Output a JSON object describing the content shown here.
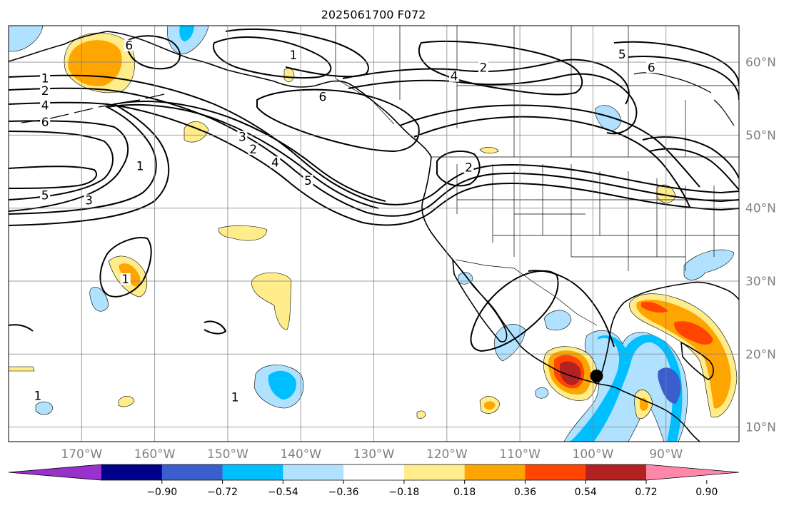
{
  "title": "2025061700 F072",
  "map": {
    "lon_range": [
      -180,
      -80
    ],
    "lat_range": [
      8,
      65
    ],
    "lon_ticks": [
      {
        "value": -170,
        "label": "170°W"
      },
      {
        "value": -160,
        "label": "160°W"
      },
      {
        "value": -150,
        "label": "150°W"
      },
      {
        "value": -140,
        "label": "140°W"
      },
      {
        "value": -130,
        "label": "130°W"
      },
      {
        "value": -120,
        "label": "120°W"
      },
      {
        "value": -110,
        "label": "110°W"
      },
      {
        "value": -100,
        "label": "100°W"
      },
      {
        "value": -90,
        "label": "90°W"
      }
    ],
    "lat_ticks": [
      {
        "value": 60,
        "label": "60°N"
      },
      {
        "value": 50,
        "label": "50°N"
      },
      {
        "value": 40,
        "label": "40°N"
      },
      {
        "value": 30,
        "label": "30°N"
      },
      {
        "value": 20,
        "label": "20°N"
      },
      {
        "value": 10,
        "label": "10°N"
      }
    ],
    "grid": true,
    "contour_labels": [
      {
        "text": "1",
        "lon": -175,
        "lat": 57.5
      },
      {
        "text": "2",
        "lon": -175,
        "lat": 55.8
      },
      {
        "text": "4",
        "lon": -175,
        "lat": 53.8
      },
      {
        "text": "6",
        "lon": -175,
        "lat": 51.5
      },
      {
        "text": "5",
        "lon": -175,
        "lat": 41.5
      },
      {
        "text": "3",
        "lon": -169,
        "lat": 40.8
      },
      {
        "text": "1",
        "lon": -162,
        "lat": 45.5
      },
      {
        "text": "6",
        "lon": -163.5,
        "lat": 62.0
      },
      {
        "text": "3",
        "lon": -148,
        "lat": 49.5
      },
      {
        "text": "2",
        "lon": -146.5,
        "lat": 47.8
      },
      {
        "text": "4",
        "lon": -143.5,
        "lat": 46.0
      },
      {
        "text": "5",
        "lon": -139,
        "lat": 43.5
      },
      {
        "text": "6",
        "lon": -137,
        "lat": 55.0
      },
      {
        "text": "4",
        "lon": -119,
        "lat": 57.8
      },
      {
        "text": "2",
        "lon": -115,
        "lat": 59.0
      },
      {
        "text": "6",
        "lon": -92,
        "lat": 59.0
      },
      {
        "text": "5",
        "lon": -96,
        "lat": 60.8
      },
      {
        "text": "1",
        "lon": -141,
        "lat": 60.7
      },
      {
        "text": "2",
        "lon": -117,
        "lat": 45.3
      },
      {
        "text": "1",
        "lon": -176,
        "lat": 14.0
      },
      {
        "text": "1",
        "lon": -149,
        "lat": 13.8
      },
      {
        "text": "1",
        "lon": -164,
        "lat": 30.0
      }
    ],
    "storm_marker": {
      "lon": -99.5,
      "lat": 17.0
    }
  },
  "colorbar": {
    "ticks": [
      "−0.90",
      "−0.72",
      "−0.54",
      "−0.36",
      "−0.18",
      "0.18",
      "0.36",
      "0.54",
      "0.72",
      "0.90"
    ],
    "colors": [
      "#9932cc",
      "#00008b",
      "#3a5fcd",
      "#00bfff",
      "#b0e2ff",
      "#ffffff",
      "#ffec8b",
      "#ffa500",
      "#ff4500",
      "#b22222",
      "#ff88aa"
    ]
  }
}
